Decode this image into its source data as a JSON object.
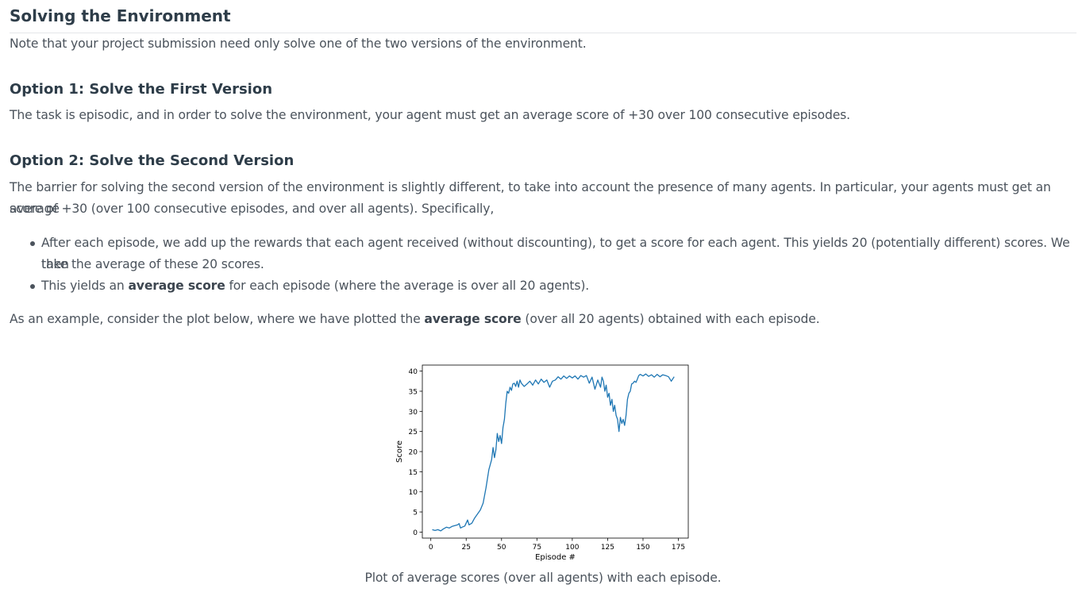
{
  "section_title": "Solving the Environment",
  "intro": "Note that your project submission need only solve one of the two versions of the environment.",
  "option1": {
    "title": "Option 1: Solve the First Version",
    "text": "The task is episodic, and in order to solve the environment, your agent must get an average score of +30 over 100 consecutive episodes."
  },
  "option2": {
    "title": "Option 2: Solve the Second Version",
    "text_line1": "The barrier for solving the second version of the environment is slightly different, to take into account the presence of many agents. In particular, your agents must get an average",
    "text_line2": "score of +30 (over 100 consecutive episodes, and over all agents). Specifically,",
    "bullets": [
      {
        "line1": "After each episode, we add up the rewards that each agent received (without discounting), to get a score for each agent. This yields 20 (potentially different) scores. We then",
        "line2": "take the average of these 20 scores."
      },
      {
        "pre": "This yields an ",
        "bold": "average score",
        "post": " for each episode (where the average is over all 20 agents)."
      }
    ]
  },
  "example": {
    "pre": "As an example, consider the plot below, where we have plotted the ",
    "bold": "average score",
    "post": " (over all 20 agents) obtained with each episode."
  },
  "caption": "Plot of average scores (over all agents) with each episode.",
  "chart_data": {
    "type": "line",
    "title": "",
    "xlabel": "Episode #",
    "ylabel": "Score",
    "xlim": [
      -6,
      182
    ],
    "ylim": [
      -1.5,
      41.5
    ],
    "x_ticks": [
      0,
      25,
      50,
      75,
      100,
      125,
      150,
      175
    ],
    "y_ticks": [
      0,
      5,
      10,
      15,
      20,
      25,
      30,
      35,
      40
    ],
    "grid": false,
    "line_color": "#1f77b4",
    "series": [
      {
        "x": [
          1,
          3,
          5,
          7,
          9,
          11,
          13,
          15,
          17,
          19,
          20,
          21,
          22,
          24,
          26,
          27,
          29,
          31,
          33,
          35,
          37,
          39,
          41,
          43,
          44,
          45,
          46,
          47,
          48,
          49,
          50,
          51,
          52,
          53,
          54,
          55,
          56,
          57,
          58,
          59,
          60,
          61,
          62,
          63,
          64,
          66,
          68,
          70,
          72,
          74,
          76,
          78,
          80,
          82,
          84,
          86,
          88,
          90,
          92,
          94,
          96,
          98,
          100,
          102,
          104,
          106,
          108,
          110,
          112,
          114,
          116,
          118,
          120,
          121,
          122,
          123,
          124,
          125,
          126,
          127,
          128,
          129,
          130,
          131,
          132,
          133,
          134,
          135,
          136,
          137,
          138,
          139,
          140,
          141,
          142,
          143,
          144,
          145,
          146,
          147,
          148,
          150,
          152,
          154,
          156,
          158,
          160,
          162,
          164,
          166,
          168,
          170,
          172
        ],
        "y": [
          0.6,
          0.4,
          0.6,
          0.3,
          0.8,
          1.2,
          1.0,
          1.4,
          1.6,
          1.8,
          2.1,
          1.0,
          1.2,
          1.5,
          3.0,
          1.8,
          2.2,
          3.5,
          4.5,
          5.5,
          7.2,
          11.0,
          15.5,
          18.0,
          21.0,
          18.5,
          20.5,
          24.5,
          22.5,
          24.0,
          22.0,
          26.0,
          28.0,
          32.0,
          35.0,
          34.5,
          36.0,
          35.2,
          36.8,
          37.0,
          36.2,
          37.5,
          36.0,
          37.8,
          37.0,
          36.2,
          36.8,
          37.5,
          36.5,
          37.8,
          36.8,
          38.0,
          37.2,
          37.8,
          36.0,
          37.5,
          37.8,
          38.6,
          38.0,
          38.8,
          38.2,
          38.8,
          38.3,
          38.8,
          38.0,
          38.9,
          38.5,
          38.9,
          37.0,
          38.5,
          35.5,
          37.8,
          36.0,
          38.5,
          37.5,
          35.0,
          36.5,
          33.5,
          34.5,
          31.5,
          33.0,
          30.0,
          31.5,
          29.0,
          28.0,
          25.0,
          28.5,
          27.0,
          28.0,
          26.5,
          29.0,
          33.0,
          34.5,
          35.0,
          36.8,
          37.0,
          37.5,
          37.2,
          38.0,
          38.9,
          39.2,
          38.8,
          39.3,
          38.7,
          39.1,
          38.5,
          39.2,
          38.6,
          39.1,
          38.9,
          38.6,
          37.5,
          38.6
        ]
      }
    ]
  }
}
